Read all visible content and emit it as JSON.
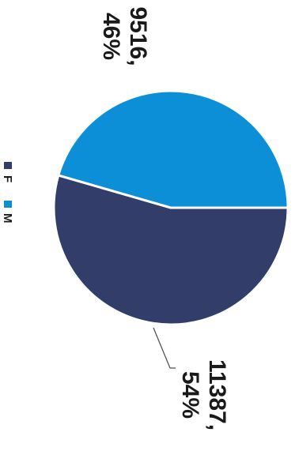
{
  "chart_data": {
    "type": "pie",
    "title": "",
    "categories": [
      "F",
      "M"
    ],
    "values": [
      11387,
      9516
    ],
    "percent_labels": [
      "54%",
      "46%"
    ],
    "data_labels": [
      {
        "value": "11387,",
        "percent": "54%"
      },
      {
        "value": "9516,",
        "percent": "46%"
      }
    ],
    "colors": [
      "#323d6a",
      "#0d8fd8"
    ],
    "legend": {
      "position": "left",
      "entries": [
        "F",
        "M"
      ]
    },
    "orientation": "rotated 90° clockwise"
  }
}
